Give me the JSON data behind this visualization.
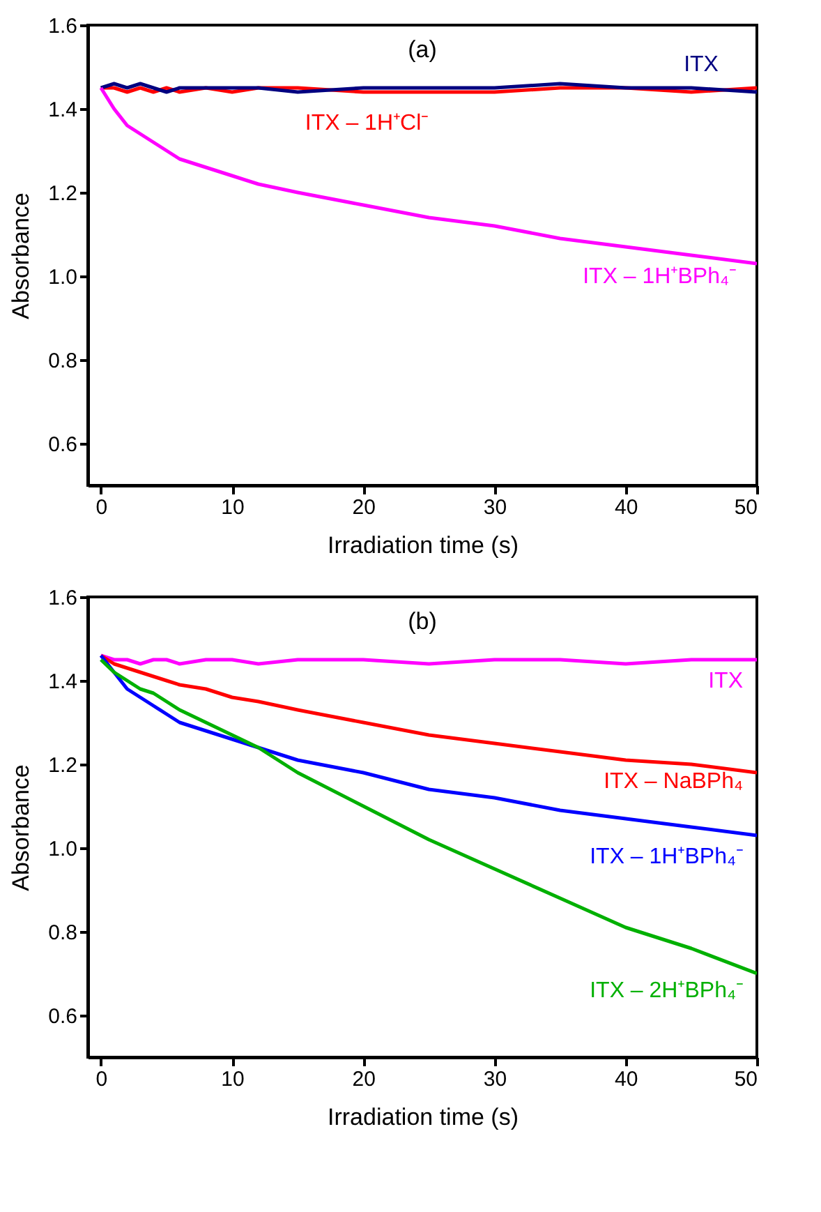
{
  "chart_data": [
    {
      "type": "line",
      "title": "(a)",
      "xlabel": "Irradiation time (s)",
      "ylabel": "Absorbance",
      "xlim": [
        -1,
        50
      ],
      "xticks": [
        0,
        10,
        20,
        30,
        40,
        50
      ],
      "ylim": [
        0.5,
        1.6
      ],
      "yticks": [
        {
          "value": 0.6,
          "label": "0.6"
        },
        {
          "value": 0.8,
          "label": "0.8"
        },
        {
          "value": 1.0,
          "label": "1.0"
        },
        {
          "value": 1.2,
          "label": "1.2"
        },
        {
          "value": 1.4,
          "label": "1.4"
        },
        {
          "value": 1.6,
          "label": "1.6"
        }
      ],
      "grid": false,
      "marker": "none",
      "line_style": "solid",
      "x": [
        0,
        1,
        2,
        3,
        4,
        5,
        6,
        8,
        10,
        12,
        15,
        20,
        25,
        30,
        35,
        40,
        45,
        50
      ],
      "series": [
        {
          "name": "ITX – 1H⁺Cl⁻",
          "color": "#ff0000",
          "values": [
            1.45,
            1.45,
            1.44,
            1.45,
            1.44,
            1.45,
            1.44,
            1.45,
            1.44,
            1.45,
            1.45,
            1.44,
            1.44,
            1.44,
            1.45,
            1.45,
            1.44,
            1.45
          ]
        },
        {
          "name": "ITX",
          "color": "#000080",
          "values": [
            1.45,
            1.46,
            1.45,
            1.46,
            1.45,
            1.44,
            1.45,
            1.45,
            1.45,
            1.45,
            1.44,
            1.45,
            1.45,
            1.45,
            1.46,
            1.45,
            1.45,
            1.44
          ]
        },
        {
          "name": "ITX – 1H⁺BPh₄⁻",
          "color": "#ff00ff",
          "values": [
            1.45,
            1.4,
            1.36,
            1.34,
            1.32,
            1.3,
            1.28,
            1.26,
            1.24,
            1.22,
            1.2,
            1.17,
            1.14,
            1.12,
            1.09,
            1.07,
            1.05,
            1.03
          ]
        }
      ]
    },
    {
      "type": "line",
      "title": "(b)",
      "xlabel": "Irradiation time (s)",
      "ylabel": "Absorbance",
      "xlim": [
        -1,
        50
      ],
      "xticks": [
        0,
        10,
        20,
        30,
        40,
        50
      ],
      "ylim": [
        0.5,
        1.6
      ],
      "yticks": [
        {
          "value": 0.6,
          "label": "0.6"
        },
        {
          "value": 0.8,
          "label": "0.8"
        },
        {
          "value": 1.0,
          "label": "1.0"
        },
        {
          "value": 1.2,
          "label": "1.2"
        },
        {
          "value": 1.4,
          "label": "1.4"
        },
        {
          "value": 1.6,
          "label": "1.6"
        }
      ],
      "grid": false,
      "marker": "none",
      "line_style": "solid",
      "x": [
        0,
        1,
        2,
        3,
        4,
        5,
        6,
        8,
        10,
        12,
        15,
        20,
        25,
        30,
        35,
        40,
        45,
        50
      ],
      "series": [
        {
          "name": "ITX",
          "color": "#ff00ff",
          "values": [
            1.46,
            1.45,
            1.45,
            1.44,
            1.45,
            1.45,
            1.44,
            1.45,
            1.45,
            1.44,
            1.45,
            1.45,
            1.44,
            1.45,
            1.45,
            1.44,
            1.45,
            1.45
          ]
        },
        {
          "name": "ITX – NaBPh₄",
          "color": "#ff0000",
          "values": [
            1.46,
            1.44,
            1.43,
            1.42,
            1.41,
            1.4,
            1.39,
            1.38,
            1.36,
            1.35,
            1.33,
            1.3,
            1.27,
            1.25,
            1.23,
            1.21,
            1.2,
            1.18
          ]
        },
        {
          "name": "ITX – 1H⁺BPh₄⁻",
          "color": "#0000ff",
          "values": [
            1.46,
            1.42,
            1.38,
            1.36,
            1.34,
            1.32,
            1.3,
            1.28,
            1.26,
            1.24,
            1.21,
            1.18,
            1.14,
            1.12,
            1.09,
            1.07,
            1.05,
            1.03
          ]
        },
        {
          "name": "ITX – 2H⁺BPh₄⁻",
          "color": "#00b000",
          "values": [
            1.45,
            1.42,
            1.4,
            1.38,
            1.37,
            1.35,
            1.33,
            1.3,
            1.27,
            1.24,
            1.18,
            1.1,
            1.02,
            0.95,
            0.88,
            0.81,
            0.76,
            0.7
          ]
        }
      ]
    }
  ]
}
